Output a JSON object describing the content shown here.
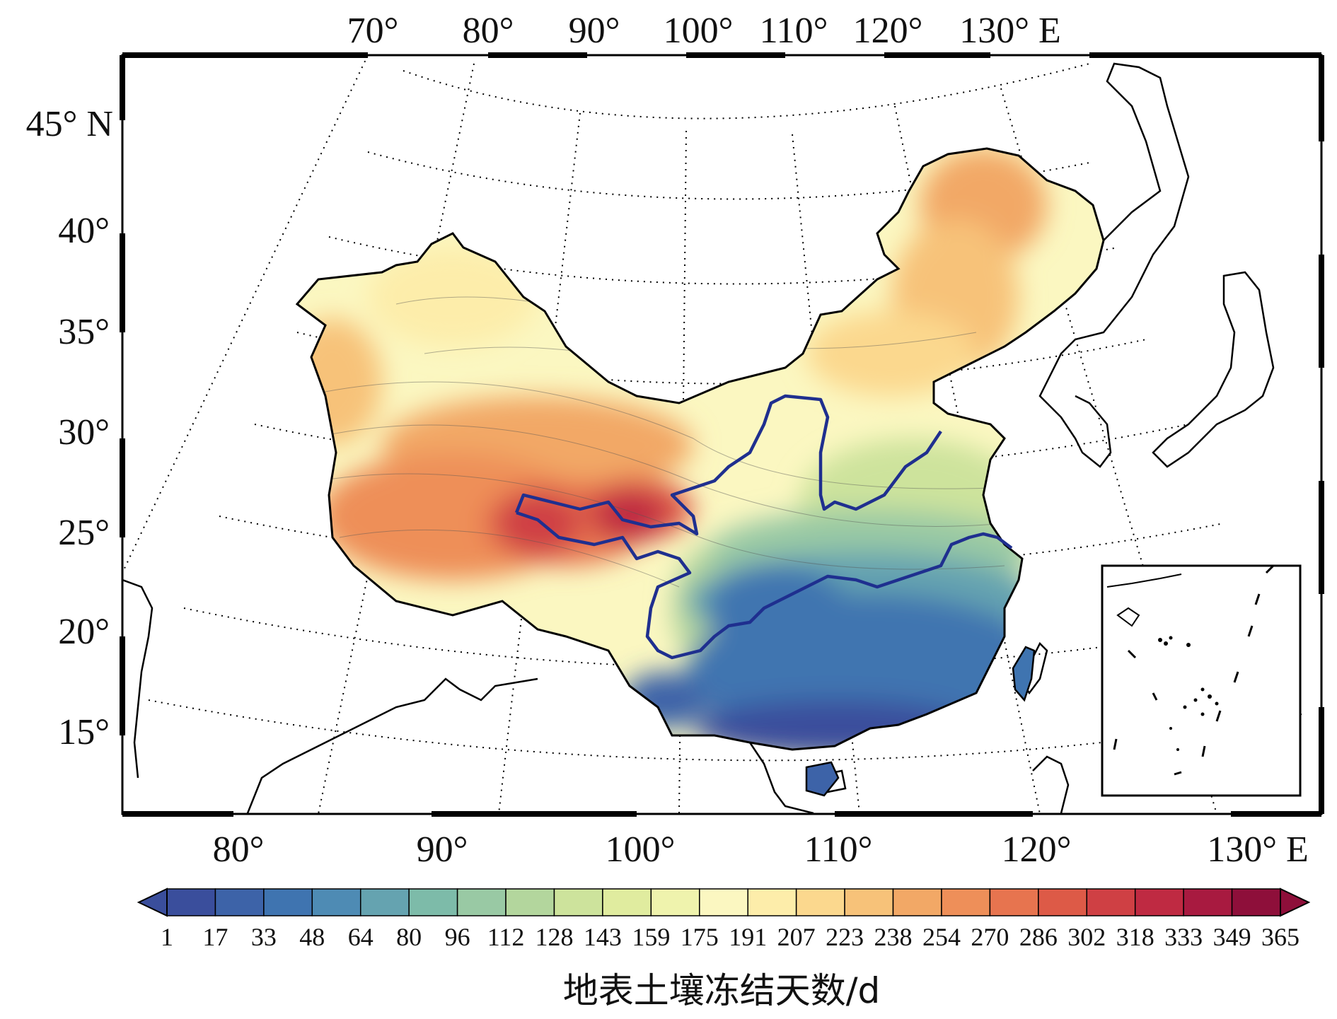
{
  "top_lon_labels": [
    "70°",
    "80°",
    "90°",
    "100°",
    "110°",
    "120°",
    "130° E"
  ],
  "left_lat_labels": [
    "45° N",
    "40°",
    "35°",
    "30°",
    "25°",
    "20°",
    "15°"
  ],
  "bottom_lon_labels": [
    "80°",
    "90°",
    "100°",
    "110°",
    "120°",
    "130° E"
  ],
  "colorbar": {
    "title": "地表土壤冻结天数/d",
    "tick_labels": [
      "1",
      "17",
      "33",
      "48",
      "64",
      "80",
      "96",
      "112",
      "128",
      "143",
      "159",
      "175",
      "191",
      "207",
      "223",
      "238",
      "254",
      "270",
      "286",
      "302",
      "318",
      "333",
      "349",
      "365"
    ],
    "colors": [
      "#3a4e9c",
      "#3d63a8",
      "#3f74b0",
      "#4e8bb4",
      "#65a3b0",
      "#7dbba9",
      "#99c9a4",
      "#b3d69d",
      "#cde39c",
      "#e0ec9f",
      "#eff3ad",
      "#fbf7c1",
      "#fdedaa",
      "#fbd88e",
      "#f7c279",
      "#f2a866",
      "#ee8f59",
      "#e7744f",
      "#dd5a47",
      "#cf4044",
      "#bf2a42",
      "#a81a40",
      "#8e0f3a"
    ],
    "extend": "both"
  },
  "colors": {
    "river": "#1f2f8f",
    "grid": "#000000",
    "border": "#000000"
  },
  "legend_placement": "bottom",
  "rivers": [
    "yellow-river",
    "yangtze-river"
  ],
  "inset": "south-china-sea"
}
